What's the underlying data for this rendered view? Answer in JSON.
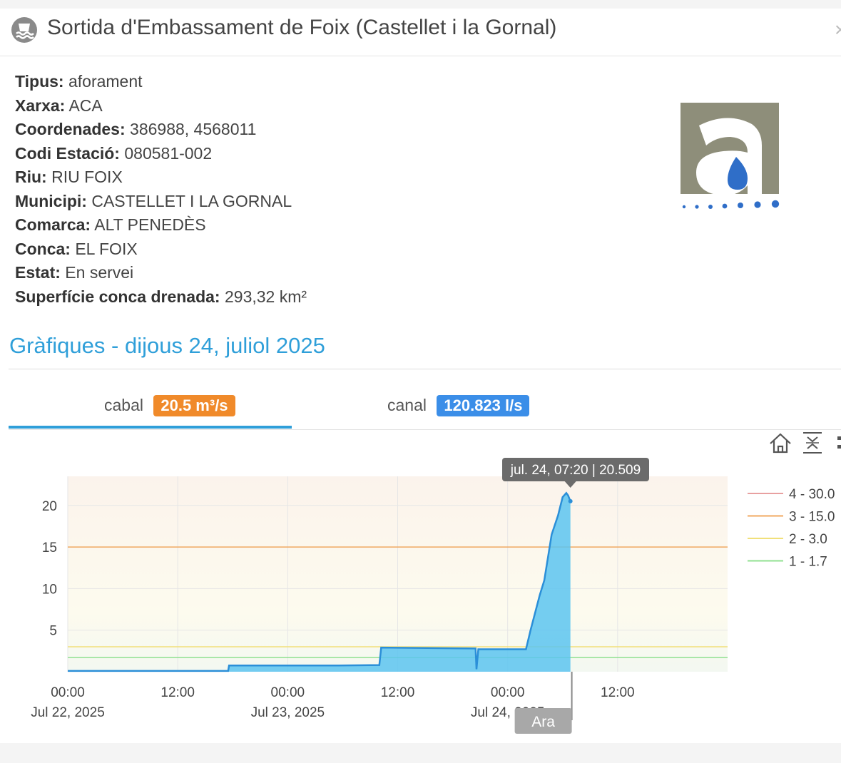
{
  "header": {
    "title": "Sortida d'Embassament de Foix (Castellet i la Gornal)",
    "icon": "dam-water-icon"
  },
  "info": [
    {
      "label": "Tipus:",
      "value": "aforament"
    },
    {
      "label": "Xarxa:",
      "value": "ACA"
    },
    {
      "label": "Coordenades:",
      "value": "386988, 4568011"
    },
    {
      "label": "Codi Estació:",
      "value": "080581-002"
    },
    {
      "label": "Riu:",
      "value": "RIU FOIX"
    },
    {
      "label": "Municipi:",
      "value": "CASTELLET I LA GORNAL"
    },
    {
      "label": "Comarca:",
      "value": "ALT PENEDÈS"
    },
    {
      "label": "Conca:",
      "value": "EL FOIX"
    },
    {
      "label": "Estat:",
      "value": "En servei"
    },
    {
      "label": "Superfície conca drenada:",
      "value": "293,32 km²"
    }
  ],
  "logo": {
    "name": "aca-logo",
    "letter": "a"
  },
  "section": {
    "title": "Gràfiques - dijous 24, juliol 2025"
  },
  "tabs": [
    {
      "label": "cabal",
      "badge": "20.5 m³/s",
      "badge_color": "#f08a2a",
      "active": true
    },
    {
      "label": "canal",
      "badge": "120.823 l/s",
      "badge_color": "#3b8ee8",
      "active": false
    }
  ],
  "toolbar": {
    "icons": [
      "home-icon",
      "zoom-fit-icon",
      "more-icon"
    ]
  },
  "chart_data": {
    "type": "area",
    "title": "",
    "xlabel": "",
    "ylabel": "",
    "x_ticks": [
      {
        "label": "00:00",
        "sublabel": "Jul 22, 2025",
        "t": 0
      },
      {
        "label": "12:00",
        "sublabel": "",
        "t": 12
      },
      {
        "label": "00:00",
        "sublabel": "Jul 23, 2025",
        "t": 24
      },
      {
        "label": "12:00",
        "sublabel": "",
        "t": 36
      },
      {
        "label": "00:00",
        "sublabel": "Jul 24, 2025",
        "t": 48
      },
      {
        "label": "12:00",
        "sublabel": "",
        "t": 60
      }
    ],
    "y_ticks": [
      5,
      10,
      15,
      20
    ],
    "ylim": [
      0,
      23.5
    ],
    "xlim": [
      0,
      72
    ],
    "series": [
      {
        "values_t": [
          0,
          17.5,
          17.6,
          29.5,
          34.0,
          34.2,
          44.5,
          44.6,
          44.8,
          50.0,
          50.5,
          51.5,
          52.0,
          52.8,
          53.5,
          54.0,
          54.4,
          54.6,
          54.85
        ],
        "values_y": [
          0.1,
          0.1,
          0.75,
          0.75,
          0.8,
          2.9,
          2.8,
          0.3,
          2.7,
          2.7,
          5.0,
          9.2,
          11.0,
          16.5,
          18.8,
          21.0,
          21.5,
          21.2,
          20.509
        ],
        "color": "#5cc4f0"
      }
    ],
    "thresholds": [
      {
        "name": "4 - 30.0",
        "value": 30.0,
        "color": "#e8a0a0"
      },
      {
        "name": "3 - 15.0",
        "value": 15.0,
        "color": "#f0a860"
      },
      {
        "name": "2 - 3.0",
        "value": 3.0,
        "color": "#f1e07a"
      },
      {
        "name": "1 - 1.7",
        "value": 1.7,
        "color": "#90e090"
      }
    ],
    "tooltip": "jul. 24, 07:20 | 20.509",
    "now_label": "Ara",
    "now_t": 55,
    "legend_position": "right"
  }
}
